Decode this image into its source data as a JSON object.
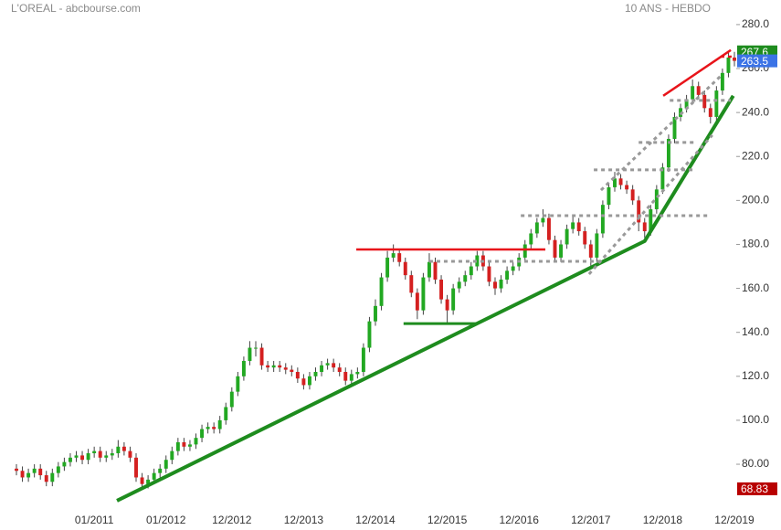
{
  "chart_data": {
    "type": "candlestick",
    "title": "L'OREAL - abcbourse.com",
    "subtitle": "10 ANS - HEBDO",
    "categories": [
      null,
      null,
      null,
      null,
      null,
      null,
      null,
      null,
      null,
      null,
      null,
      null,
      null,
      "01/2011",
      null,
      null,
      null,
      null,
      null,
      null,
      null,
      null,
      null,
      null,
      null,
      "01/2012",
      null,
      null,
      null,
      null,
      null,
      null,
      null,
      null,
      null,
      null,
      "12/2012",
      null,
      null,
      null,
      null,
      null,
      null,
      null,
      null,
      null,
      null,
      null,
      "12/2013",
      null,
      null,
      null,
      null,
      null,
      null,
      null,
      null,
      null,
      null,
      null,
      "12/2014",
      null,
      null,
      null,
      null,
      null,
      null,
      null,
      null,
      null,
      null,
      null,
      "12/2015",
      null,
      null,
      null,
      null,
      null,
      null,
      null,
      null,
      null,
      null,
      null,
      "12/2016",
      null,
      null,
      null,
      null,
      null,
      null,
      null,
      null,
      null,
      null,
      null,
      "12/2017",
      null,
      null,
      null,
      null,
      null,
      null,
      null,
      null,
      null,
      null,
      null,
      "12/2018",
      null,
      null,
      null,
      null,
      null,
      null,
      null,
      null,
      null,
      null,
      null,
      "12/2019"
    ],
    "open": [
      78,
      77,
      74,
      76,
      78,
      75,
      72,
      76,
      79,
      81,
      83,
      84,
      82,
      85,
      86,
      83,
      84,
      85,
      88,
      86,
      83,
      74,
      71,
      73,
      76,
      78,
      82,
      86,
      90,
      88,
      89,
      92,
      96,
      97,
      96,
      100,
      106,
      113,
      120,
      127,
      133,
      133,
      125,
      124,
      125,
      124,
      123,
      122,
      119,
      116,
      120,
      122,
      125,
      126,
      124,
      122,
      118,
      121,
      122,
      133,
      145,
      152,
      165,
      174,
      176,
      172,
      166,
      158,
      150,
      165,
      172,
      164,
      155,
      150,
      160,
      163,
      166,
      170,
      175,
      170,
      163,
      160,
      164,
      168,
      170,
      174,
      180,
      185,
      190,
      192,
      182,
      174,
      180,
      187,
      190,
      186,
      180,
      174,
      185,
      198,
      206,
      210,
      207,
      205,
      200,
      190,
      186,
      196,
      205,
      215,
      228,
      238,
      242,
      246,
      252,
      248,
      242,
      238,
      250,
      258,
      265
    ],
    "high": [
      80,
      79,
      78,
      80,
      80,
      77,
      78,
      81,
      83,
      85,
      86,
      86,
      87,
      88,
      88,
      86,
      87,
      91,
      90,
      88,
      85,
      76,
      75,
      78,
      80,
      84,
      88,
      92,
      92,
      91,
      94,
      98,
      99,
      99,
      102,
      108,
      115,
      122,
      129,
      136,
      136,
      135,
      127,
      127,
      127,
      126,
      125,
      124,
      121,
      122,
      124,
      127,
      128,
      128,
      126,
      124,
      123,
      124,
      135,
      147,
      155,
      167,
      177,
      180,
      178,
      174,
      168,
      160,
      167,
      176,
      174,
      166,
      157,
      162,
      165,
      168,
      172,
      177,
      177,
      172,
      165,
      166,
      170,
      172,
      176,
      182,
      187,
      192,
      196,
      194,
      184,
      182,
      189,
      193,
      192,
      188,
      182,
      187,
      200,
      208,
      213,
      212,
      209,
      207,
      202,
      192,
      198,
      207,
      217,
      230,
      240,
      244,
      248,
      255,
      254,
      250,
      244,
      252,
      260,
      268,
      267.6
    ],
    "low": [
      75,
      72,
      72,
      74,
      73,
      70,
      70,
      74,
      77,
      79,
      81,
      80,
      80,
      83,
      81,
      81,
      82,
      83,
      84,
      81,
      72,
      68.83,
      69,
      71,
      74,
      76,
      80,
      84,
      86,
      86,
      87,
      90,
      94,
      94,
      94,
      98,
      104,
      111,
      118,
      125,
      129,
      123,
      122,
      122,
      122,
      121,
      120,
      117,
      114,
      114,
      118,
      120,
      123,
      122,
      120,
      116,
      116,
      119,
      120,
      131,
      143,
      150,
      163,
      172,
      170,
      164,
      156,
      146,
      148,
      163,
      162,
      153,
      144,
      148,
      158,
      161,
      164,
      168,
      168,
      161,
      157,
      158,
      162,
      166,
      168,
      172,
      178,
      183,
      188,
      180,
      172,
      172,
      178,
      185,
      184,
      178,
      170,
      172,
      183,
      196,
      204,
      205,
      203,
      198,
      186,
      183,
      184,
      194,
      203,
      213,
      226,
      236,
      240,
      244,
      246,
      240,
      235,
      236,
      248,
      256,
      261
    ],
    "close": [
      77,
      74,
      76,
      78,
      75,
      72,
      76,
      79,
      81,
      83,
      84,
      82,
      85,
      86,
      83,
      84,
      85,
      88,
      86,
      83,
      74,
      71,
      73,
      76,
      78,
      82,
      86,
      90,
      88,
      89,
      92,
      96,
      97,
      96,
      100,
      106,
      113,
      120,
      127,
      133,
      133,
      125,
      124,
      125,
      124,
      123,
      122,
      119,
      116,
      120,
      122,
      125,
      126,
      124,
      122,
      118,
      121,
      122,
      133,
      145,
      152,
      165,
      174,
      176,
      172,
      166,
      158,
      150,
      165,
      172,
      164,
      155,
      150,
      160,
      163,
      166,
      170,
      175,
      170,
      163,
      160,
      164,
      168,
      170,
      174,
      180,
      185,
      190,
      192,
      182,
      174,
      180,
      187,
      190,
      186,
      180,
      174,
      185,
      198,
      206,
      210,
      207,
      205,
      200,
      190,
      186,
      196,
      205,
      215,
      228,
      238,
      242,
      246,
      252,
      248,
      242,
      238,
      250,
      258,
      265,
      263.5
    ],
    "up_color": "#22a822",
    "down_color": "#d42020",
    "ylim": [
      58.4,
      283.7
    ],
    "yticks": [
      {
        "value": 80,
        "label": "80.00"
      },
      {
        "value": 100,
        "label": "100.0"
      },
      {
        "value": 120,
        "label": "120.0"
      },
      {
        "value": 140,
        "label": "140.0"
      },
      {
        "value": 160,
        "label": "160.0"
      },
      {
        "value": 180,
        "label": "180.0"
      },
      {
        "value": 200,
        "label": "200.0"
      },
      {
        "value": 220,
        "label": "220.0"
      },
      {
        "value": 240,
        "label": "240.0"
      },
      {
        "value": 260,
        "label": "260.0"
      },
      {
        "value": 280,
        "label": "280.0"
      }
    ],
    "price_badges": [
      {
        "value": 267.6,
        "color": "#1e8c1e"
      },
      {
        "value": 263.5,
        "color": "#3b73e6"
      },
      {
        "value": 68.83,
        "color": "#b80000"
      }
    ],
    "trend_lines": [
      {
        "color": "#1e8c1e",
        "width": 4,
        "dashed": false,
        "x": [
          16.8,
          57.1,
          105,
          119.8
        ],
        "y": [
          63.4,
          117.4,
          181.5,
          247.6
        ]
      },
      {
        "color": "#1e8c1e",
        "width": 3,
        "dashed": false,
        "x": [
          64.7,
          77.1
        ],
        "y": [
          144,
          144
        ]
      },
      {
        "color": "#e8141a",
        "width": 2.5,
        "dashed": false,
        "x": [
          56.8,
          88.4
        ],
        "y": [
          177.7,
          177.7
        ]
      },
      {
        "color": "#e8141a",
        "width": 2.5,
        "dashed": false,
        "x": [
          108.1,
          119.4
        ],
        "y": [
          247.6,
          268.4
        ]
      },
      {
        "color": "#e8141a",
        "width": 2.5,
        "dashed": true,
        "x": [
          117.7,
          120
        ],
        "y": [
          265.4,
          265.4
        ]
      },
      {
        "color": "#999999",
        "width": 3,
        "dashed": true,
        "x": [
          84.3,
          115.6
        ],
        "y": [
          193.1,
          193.1
        ]
      },
      {
        "color": "#999999",
        "width": 3,
        "dashed": true,
        "x": [
          69,
          98
        ],
        "y": [
          172.3,
          172.3
        ]
      },
      {
        "color": "#999999",
        "width": 3,
        "dashed": true,
        "x": [
          104,
          113.5
        ],
        "y": [
          226.4,
          226.4
        ]
      },
      {
        "color": "#999999",
        "width": 3,
        "dashed": true,
        "x": [
          96.5,
          113
        ],
        "y": [
          213.9,
          213.9
        ]
      },
      {
        "color": "#999999",
        "width": 3,
        "dashed": true,
        "x": [
          97.7,
          117.9
        ],
        "y": [
          204.7,
          257.1
        ]
      },
      {
        "color": "#999999",
        "width": 3,
        "dashed": true,
        "x": [
          95.7,
          116.3
        ],
        "y": [
          166.5,
          229.7
        ]
      },
      {
        "color": "#999999",
        "width": 3,
        "dashed": true,
        "x": [
          109.2,
          119.4
        ],
        "y": [
          245.5,
          245.5
        ]
      }
    ]
  }
}
